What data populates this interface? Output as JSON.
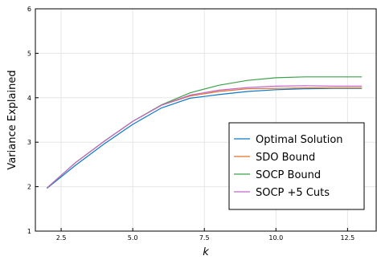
{
  "chart_data": {
    "type": "line",
    "xlabel": "k",
    "ylabel": "Variance Explained",
    "xlim": [
      1.6,
      13.5
    ],
    "ylim": [
      1,
      6
    ],
    "xticks": [
      "2.5",
      "5.0",
      "7.5",
      "10.0",
      "12.5"
    ],
    "yticks": [
      "1",
      "2",
      "3",
      "4",
      "5",
      "6"
    ],
    "grid": true,
    "legend_position": "bottom-right",
    "series": [
      {
        "name": "Optimal Solution",
        "color": "#0a79c8",
        "x": [
          2,
          3,
          4,
          5,
          6,
          7,
          8,
          9,
          10,
          11,
          12,
          13
        ],
        "y": [
          1.96,
          2.48,
          2.96,
          3.4,
          3.77,
          3.99,
          4.07,
          4.14,
          4.18,
          4.2,
          4.21,
          4.21
        ]
      },
      {
        "name": "SDO Bound",
        "color": "#e0702a",
        "x": [
          2,
          3,
          4,
          5,
          6,
          7,
          8,
          9,
          10,
          11,
          12,
          13
        ],
        "y": [
          1.97,
          2.54,
          3.02,
          3.47,
          3.83,
          4.04,
          4.14,
          4.2,
          4.21,
          4.22,
          4.22,
          4.22
        ]
      },
      {
        "name": "SOCP Bound",
        "color": "#3aa24a",
        "x": [
          2,
          3,
          4,
          5,
          6,
          7,
          8,
          9,
          10,
          11,
          12,
          13
        ],
        "y": [
          1.97,
          2.54,
          3.02,
          3.47,
          3.84,
          4.11,
          4.28,
          4.39,
          4.45,
          4.47,
          4.47,
          4.47
        ]
      },
      {
        "name": "SOCP +5 Cuts",
        "color": "#c366c9",
        "x": [
          2,
          3,
          4,
          5,
          6,
          7,
          8,
          9,
          10,
          11,
          12,
          13
        ],
        "y": [
          1.97,
          2.54,
          3.02,
          3.47,
          3.83,
          4.06,
          4.17,
          4.23,
          4.26,
          4.27,
          4.26,
          4.26
        ]
      }
    ]
  }
}
